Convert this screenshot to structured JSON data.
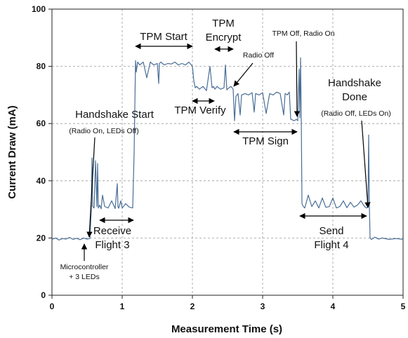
{
  "chart_data": {
    "type": "line",
    "xlabel": "Measurement Time (s)",
    "ylabel": "Current Draw (mA)",
    "xlim": [
      0,
      5
    ],
    "ylim": [
      0,
      100
    ],
    "xticks": [
      0,
      1,
      2,
      3,
      4,
      5
    ],
    "yticks": [
      0,
      20,
      40,
      60,
      80,
      100
    ],
    "grid": "dashed",
    "legend": "none",
    "line_color": "#4a6e96",
    "series": [
      {
        "x": [
          0.0,
          0.05,
          0.1,
          0.15,
          0.2,
          0.25,
          0.3,
          0.35,
          0.4,
          0.45,
          0.5,
          0.54,
          0.56,
          0.57,
          0.58,
          0.6,
          0.62,
          0.64,
          0.65,
          0.66,
          0.68,
          0.7,
          0.72,
          0.75,
          0.8,
          0.85,
          0.9,
          0.93,
          0.94,
          0.95,
          0.98,
          1.0,
          1.05,
          1.1,
          1.15,
          1.17,
          1.19,
          1.2,
          1.22,
          1.25,
          1.3,
          1.35,
          1.4,
          1.45,
          1.5,
          1.52,
          1.53,
          1.55,
          1.6,
          1.65,
          1.7,
          1.75,
          1.8,
          1.85,
          1.9,
          1.95,
          2.0,
          2.02,
          2.04,
          2.06,
          2.1,
          2.15,
          2.2,
          2.25,
          2.28,
          2.3,
          2.32,
          2.35,
          2.4,
          2.45,
          2.47,
          2.49,
          2.52,
          2.55,
          2.58,
          2.6,
          2.62,
          2.65,
          2.68,
          2.7,
          2.75,
          2.8,
          2.85,
          2.88,
          2.9,
          2.95,
          3.0,
          3.05,
          3.1,
          3.15,
          3.2,
          3.25,
          3.3,
          3.32,
          3.35,
          3.38,
          3.4,
          3.45,
          3.48,
          3.5,
          3.52,
          3.53,
          3.54,
          3.55,
          3.56,
          3.58,
          3.6,
          3.65,
          3.7,
          3.75,
          3.8,
          3.85,
          3.9,
          3.95,
          4.0,
          4.05,
          4.1,
          4.15,
          4.2,
          4.25,
          4.3,
          4.35,
          4.4,
          4.45,
          4.48,
          4.5,
          4.51,
          4.52,
          4.53,
          4.55,
          4.6,
          4.65,
          4.7,
          4.8,
          4.9,
          5.0
        ],
        "y": [
          19.5,
          20.0,
          19.3,
          19.8,
          19.6,
          20.2,
          19.5,
          19.9,
          19.4,
          20.0,
          19.6,
          19.8,
          30.0,
          48.0,
          31.0,
          30.5,
          47.0,
          31.0,
          46.0,
          30.5,
          31.5,
          30.2,
          35.0,
          31.0,
          30.5,
          33.0,
          30.3,
          39.0,
          31.0,
          30.4,
          33.0,
          30.5,
          32.0,
          30.8,
          30.5,
          50.0,
          82.0,
          78.0,
          81.5,
          80.5,
          81.5,
          76.0,
          81.5,
          80.5,
          81.0,
          74.0,
          81.0,
          81.5,
          80.5,
          81.0,
          80.8,
          81.5,
          80.5,
          81.0,
          80.5,
          81.5,
          80.0,
          75.0,
          72.5,
          73.0,
          72.0,
          73.0,
          71.5,
          80.0,
          72.5,
          73.0,
          72.0,
          73.0,
          72.0,
          72.5,
          80.5,
          71.8,
          72.5,
          73.0,
          72.0,
          61.0,
          69.5,
          70.5,
          63.0,
          70.0,
          70.5,
          70.0,
          70.8,
          64.0,
          70.5,
          70.0,
          70.8,
          63.5,
          70.5,
          70.0,
          71.0,
          70.5,
          63.0,
          70.5,
          70.0,
          71.0,
          61.5,
          61.0,
          61.5,
          61.0,
          79.0,
          62.0,
          83.0,
          62.0,
          32.0,
          31.0,
          30.5,
          35.0,
          31.0,
          33.0,
          30.5,
          34.0,
          30.7,
          31.0,
          34.0,
          30.5,
          31.0,
          33.0,
          30.6,
          32.5,
          30.8,
          31.5,
          33.0,
          31.0,
          30.5,
          30.8,
          56.0,
          31.0,
          20.0,
          19.5,
          20.3,
          19.6,
          20.0,
          19.5,
          19.8,
          19.5
        ]
      }
    ],
    "annotations": {
      "handshake_start": "Handshake Start",
      "radio_on_leds_off": "(Radio On, LEDs Off)",
      "receive": "Receive",
      "flight3": "Flight 3",
      "micro1": "Microcontroller",
      "micro2": "+ 3 LEDs",
      "tpm_start": "TPM Start",
      "tpm_encrypt1": "TPM",
      "tpm_encrypt2": "Encrypt",
      "radio_off": "Radio Off",
      "tpm_verify": "TPM Verify",
      "tpm_off_radio_on": "TPM Off, Radio On",
      "tpm_sign": "TPM Sign",
      "handshake_done1": "Handshake",
      "handshake_done2": "Done",
      "radio_off_leds_on": "(Radio Off, LEDs On)",
      "send": "Send",
      "flight4": "Flight 4"
    }
  }
}
